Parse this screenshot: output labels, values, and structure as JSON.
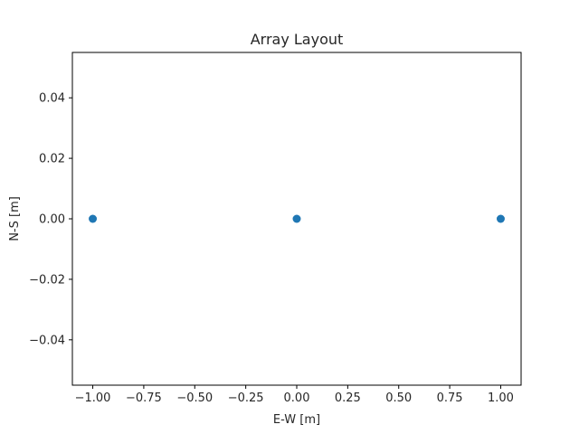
{
  "chart_data": {
    "type": "scatter",
    "title": "Array Layout",
    "xlabel": "E-W [m]",
    "ylabel": "N-S [m]",
    "xlim": [
      -1.1,
      1.1
    ],
    "ylim": [
      -0.055,
      0.055
    ],
    "grid": false,
    "marker_color": "#1f77b4",
    "x_ticks": [
      -1.0,
      -0.75,
      -0.5,
      -0.25,
      0.0,
      0.25,
      0.5,
      0.75,
      1.0
    ],
    "x_tick_labels": [
      "−1.00",
      "−0.75",
      "−0.50",
      "−0.25",
      "0.00",
      "0.25",
      "0.50",
      "0.75",
      "1.00"
    ],
    "y_ticks": [
      -0.04,
      -0.02,
      0.0,
      0.02,
      0.04
    ],
    "y_tick_labels": [
      "−0.04",
      "−0.02",
      "0.00",
      "0.02",
      "0.04"
    ],
    "series": [
      {
        "points": [
          {
            "x": -1.0,
            "y": 0.0
          },
          {
            "x": 0.0,
            "y": 0.0
          },
          {
            "x": 1.0,
            "y": 0.0
          }
        ]
      }
    ]
  }
}
